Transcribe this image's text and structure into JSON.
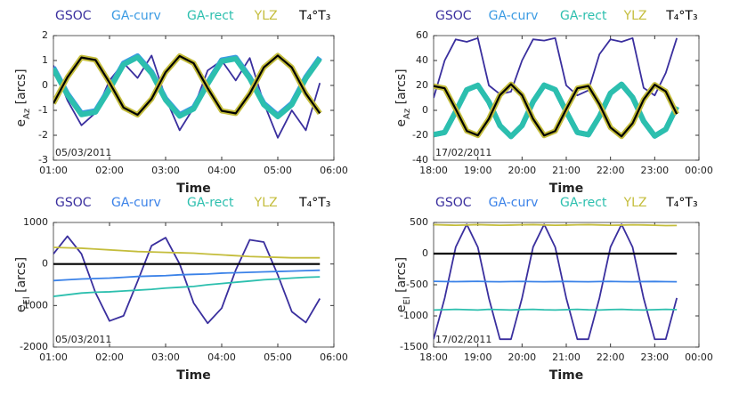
{
  "chart_data": [
    {
      "type": "line",
      "xlabel": "Time",
      "ylabel": [
        "e",
        "Az",
        " [arcs]"
      ],
      "annotation": "05/03/2011",
      "x": [
        1,
        1.25,
        1.5,
        1.75,
        2,
        2.25,
        2.5,
        2.75,
        3,
        3.25,
        3.5,
        3.75,
        4,
        4.25,
        4.5,
        4.75,
        5,
        5.25,
        5.5,
        5.75
      ],
      "xlim": [
        1,
        6
      ],
      "xticks": [
        {
          "value": 1,
          "label": "01:00"
        },
        {
          "value": 2,
          "label": "02:00"
        },
        {
          "value": 3,
          "label": "03:00"
        },
        {
          "value": 4,
          "label": "04:00"
        },
        {
          "value": 5,
          "label": "05:00"
        },
        {
          "value": 6,
          "label": "06:00"
        }
      ],
      "ylim": [
        -3,
        2
      ],
      "yticks": [
        -3,
        -2,
        -1,
        0,
        1,
        2
      ],
      "series": [
        {
          "name": "GSOC",
          "color": "#3a2f9e",
          "values": [
            0.8,
            -0.6,
            -1.6,
            -1.1,
            0.2,
            0.9,
            0.3,
            1.2,
            -0.5,
            -1.8,
            -0.9,
            0.6,
            1.0,
            0.2,
            1.1,
            -0.7,
            -2.1,
            -1.0,
            -1.8,
            0.1
          ]
        },
        {
          "name": "GA-curv",
          "color": "#3b9be3",
          "values": [
            0.72,
            -0.33,
            -1.12,
            -1.02,
            -0.11,
            0.89,
            1.18,
            0.54,
            -0.53,
            -1.18,
            -0.89,
            0.11,
            1.02,
            1.12,
            0.33,
            -0.72,
            -1.2,
            -0.72,
            0.33,
            1.12
          ]
        },
        {
          "name": "GA-rect",
          "color": "#2cbfae",
          "values": [
            0.67,
            -0.38,
            -1.17,
            -1.07,
            -0.16,
            0.84,
            1.13,
            0.49,
            -0.58,
            -1.23,
            -0.94,
            0.06,
            0.97,
            1.07,
            0.28,
            -0.77,
            -1.25,
            -0.77,
            0.28,
            1.07
          ]
        },
        {
          "name": "YLZ",
          "color": "#c4bd3c",
          "values": [
            -0.72,
            0.33,
            1.12,
            1.02,
            0.11,
            -0.89,
            -1.18,
            -0.54,
            0.53,
            1.18,
            0.89,
            -0.11,
            -1.02,
            -1.12,
            -0.33,
            0.72,
            1.2,
            0.72,
            -0.33,
            -1.12
          ]
        },
        {
          "name": "T₄°T₃",
          "color": "#000000",
          "values": [
            -0.72,
            0.33,
            1.12,
            1.02,
            0.11,
            -0.89,
            -1.18,
            -0.54,
            0.53,
            1.18,
            0.89,
            -0.11,
            -1.02,
            -1.12,
            -0.33,
            0.72,
            1.2,
            0.72,
            -0.33,
            -1.12
          ]
        }
      ]
    },
    {
      "type": "line",
      "xlabel": "Time",
      "ylabel": [
        "e",
        "Az",
        " [arcs]"
      ],
      "annotation": "17/02/2011",
      "x": [
        18,
        18.25,
        18.5,
        18.75,
        19,
        19.25,
        19.5,
        19.75,
        20,
        20.25,
        20.5,
        20.75,
        21,
        21.25,
        21.5,
        21.75,
        22,
        22.25,
        22.5,
        22.75,
        23,
        23.25,
        23.5
      ],
      "xlim": [
        18,
        24
      ],
      "xticks": [
        {
          "value": 18,
          "label": "18:00"
        },
        {
          "value": 19,
          "label": "19:00"
        },
        {
          "value": 20,
          "label": "20:00"
        },
        {
          "value": 21,
          "label": "21:00"
        },
        {
          "value": 22,
          "label": "22:00"
        },
        {
          "value": 23,
          "label": "23:00"
        },
        {
          "value": 24,
          "label": "00:00"
        }
      ],
      "ylim": [
        -40,
        60
      ],
      "yticks": [
        -40,
        -20,
        0,
        20,
        40,
        60
      ],
      "series": [
        {
          "name": "GSOC",
          "color": "#3a2f9e",
          "values": [
            10,
            40,
            57,
            55,
            58,
            20,
            13,
            15,
            40,
            57,
            56,
            58,
            20,
            12,
            16,
            45,
            57,
            55,
            58,
            18,
            12,
            30,
            58
          ]
        },
        {
          "name": "GA-curv",
          "color": "#3b9be3",
          "values": [
            -19.5,
            -17.7,
            -1.0,
            16.5,
            20.1,
            6.8,
            -12.2,
            -21,
            -12.2,
            6.9,
            20.2,
            16.6,
            -1.0,
            -17.7,
            -19.5,
            -4.9,
            13.8,
            20.9,
            10.4,
            -8.7,
            -20.6,
            -15.2,
            3.0
          ]
        },
        {
          "name": "GA-rect",
          "color": "#2cbfae",
          "values": [
            -19.5,
            -17.7,
            -1.0,
            16.5,
            20.1,
            6.8,
            -12.2,
            -21,
            -12.2,
            6.9,
            20.2,
            16.6,
            -1.0,
            -17.7,
            -19.5,
            -4.9,
            13.8,
            20.9,
            10.4,
            -8.7,
            -20.6,
            -15.2,
            3.0
          ]
        },
        {
          "name": "YLZ",
          "color": "#c4bd3c",
          "values": [
            19.5,
            17.7,
            1.0,
            -16.5,
            -20.1,
            -6.8,
            12.2,
            21,
            12.2,
            -6.9,
            -20.2,
            -16.6,
            1.0,
            17.7,
            19.5,
            4.9,
            -13.8,
            -20.9,
            -10.4,
            8.7,
            20.6,
            15.2,
            -3.0
          ]
        },
        {
          "name": "T₄°T₃",
          "color": "#000000",
          "values": [
            19.5,
            17.7,
            1.0,
            -16.5,
            -20.1,
            -6.8,
            12.2,
            21,
            12.2,
            -6.9,
            -20.2,
            -16.6,
            1.0,
            17.7,
            19.5,
            4.9,
            -13.8,
            -20.9,
            -10.4,
            8.7,
            20.6,
            15.2,
            -3.0
          ]
        }
      ]
    },
    {
      "type": "line",
      "xlabel": "Time",
      "ylabel": [
        "e",
        "El",
        " [arcs]"
      ],
      "annotation": "05/03/2011",
      "x": [
        1,
        1.25,
        1.5,
        1.75,
        2,
        2.25,
        2.5,
        2.75,
        3,
        3.25,
        3.5,
        3.75,
        4,
        4.25,
        4.5,
        4.75,
        5,
        5.25,
        5.5,
        5.75
      ],
      "xlim": [
        1,
        6
      ],
      "xticks": [
        {
          "value": 1,
          "label": "01:00"
        },
        {
          "value": 2,
          "label": "02:00"
        },
        {
          "value": 3,
          "label": "03:00"
        },
        {
          "value": 4,
          "label": "04:00"
        },
        {
          "value": 5,
          "label": "05:00"
        },
        {
          "value": 6,
          "label": "06:00"
        }
      ],
      "ylim": [
        -2000,
        1000
      ],
      "yticks": [
        -2000,
        -1000,
        0,
        1000
      ],
      "series": [
        {
          "name": "GSOC",
          "color": "#3a2f9e",
          "values": [
            244,
            670,
            244,
            -690,
            -1372,
            -1247,
            -419,
            441,
            634,
            3,
            -939,
            -1427,
            -1064,
            -147,
            583,
            529,
            -263,
            -1148,
            -1410,
            -832
          ]
        },
        {
          "name": "GA-curv",
          "color": "#3b82e8",
          "values": [
            -400,
            -380,
            -360,
            -350,
            -340,
            -320,
            -300,
            -290,
            -280,
            -260,
            -250,
            -240,
            -220,
            -210,
            -200,
            -190,
            -180,
            -170,
            -160,
            -150
          ]
        },
        {
          "name": "GA-rect",
          "color": "#2cbfae",
          "values": [
            -780,
            -740,
            -700,
            -680,
            -670,
            -650,
            -630,
            -610,
            -580,
            -560,
            -540,
            -500,
            -470,
            -440,
            -410,
            -380,
            -360,
            -340,
            -320,
            -310
          ]
        },
        {
          "name": "YLZ",
          "color": "#c4bd3c",
          "values": [
            400,
            390,
            380,
            360,
            340,
            320,
            300,
            290,
            280,
            270,
            260,
            240,
            220,
            200,
            180,
            170,
            160,
            150,
            150,
            150
          ]
        },
        {
          "name": "T₄°T₃",
          "color": "#000000",
          "values": [
            0,
            0,
            0,
            0,
            0,
            0,
            0,
            0,
            0,
            0,
            0,
            0,
            0,
            0,
            0,
            0,
            0,
            0,
            0,
            0
          ]
        }
      ]
    },
    {
      "type": "line",
      "xlabel": "Time",
      "ylabel": [
        "e",
        "El",
        " [arcs]"
      ],
      "annotation": "17/02/2011",
      "x": [
        18,
        18.25,
        18.5,
        18.75,
        19,
        19.25,
        19.5,
        19.75,
        20,
        20.25,
        20.5,
        20.75,
        21,
        21.25,
        21.5,
        21.75,
        22,
        22.25,
        22.5,
        22.75,
        23,
        23.25,
        23.5
      ],
      "xlim": [
        18,
        24
      ],
      "xticks": [
        {
          "value": 18,
          "label": "18:00"
        },
        {
          "value": 19,
          "label": "19:00"
        },
        {
          "value": 20,
          "label": "20:00"
        },
        {
          "value": 21,
          "label": "21:00"
        },
        {
          "value": 22,
          "label": "22:00"
        },
        {
          "value": 23,
          "label": "23:00"
        },
        {
          "value": 24,
          "label": "00:00"
        }
      ],
      "ylim": [
        -1500,
        500
      ],
      "yticks": [
        -1500,
        -1000,
        -500,
        0,
        500
      ],
      "series": [
        {
          "name": "GSOC",
          "color": "#3a2f9e",
          "values": [
            -1374,
            -715,
            105,
            470,
            104,
            -716,
            -1374,
            -1374,
            -714,
            106,
            470,
            104,
            -716,
            -1374,
            -1374,
            -714,
            106,
            470,
            103,
            -718,
            -1375,
            -1373,
            -712
          ]
        },
        {
          "name": "GA-curv",
          "color": "#3b82e8",
          "values": [
            -445,
            -448,
            -450,
            -447,
            -445,
            -450,
            -452,
            -448,
            -446,
            -450,
            -452,
            -449,
            -447,
            -450,
            -452,
            -448,
            -446,
            -450,
            -452,
            -449,
            -447,
            -450,
            -452
          ]
        },
        {
          "name": "GA-rect",
          "color": "#2cbfae",
          "values": [
            -905,
            -900,
            -895,
            -900,
            -905,
            -895,
            -900,
            -905,
            -898,
            -895,
            -902,
            -905,
            -900,
            -895,
            -902,
            -905,
            -898,
            -895,
            -902,
            -905,
            -900,
            -895,
            -900
          ]
        },
        {
          "name": "YLZ",
          "color": "#c4bd3c",
          "values": [
            465,
            460,
            455,
            460,
            465,
            460,
            455,
            458,
            462,
            465,
            460,
            455,
            458,
            462,
            465,
            460,
            455,
            458,
            462,
            460,
            455,
            450,
            452
          ]
        },
        {
          "name": "T₄°T₃",
          "color": "#000000",
          "values": [
            0,
            0,
            0,
            0,
            0,
            0,
            0,
            0,
            0,
            0,
            0,
            0,
            0,
            0,
            0,
            0,
            0,
            0,
            0,
            0,
            0,
            0,
            0
          ]
        }
      ]
    }
  ]
}
